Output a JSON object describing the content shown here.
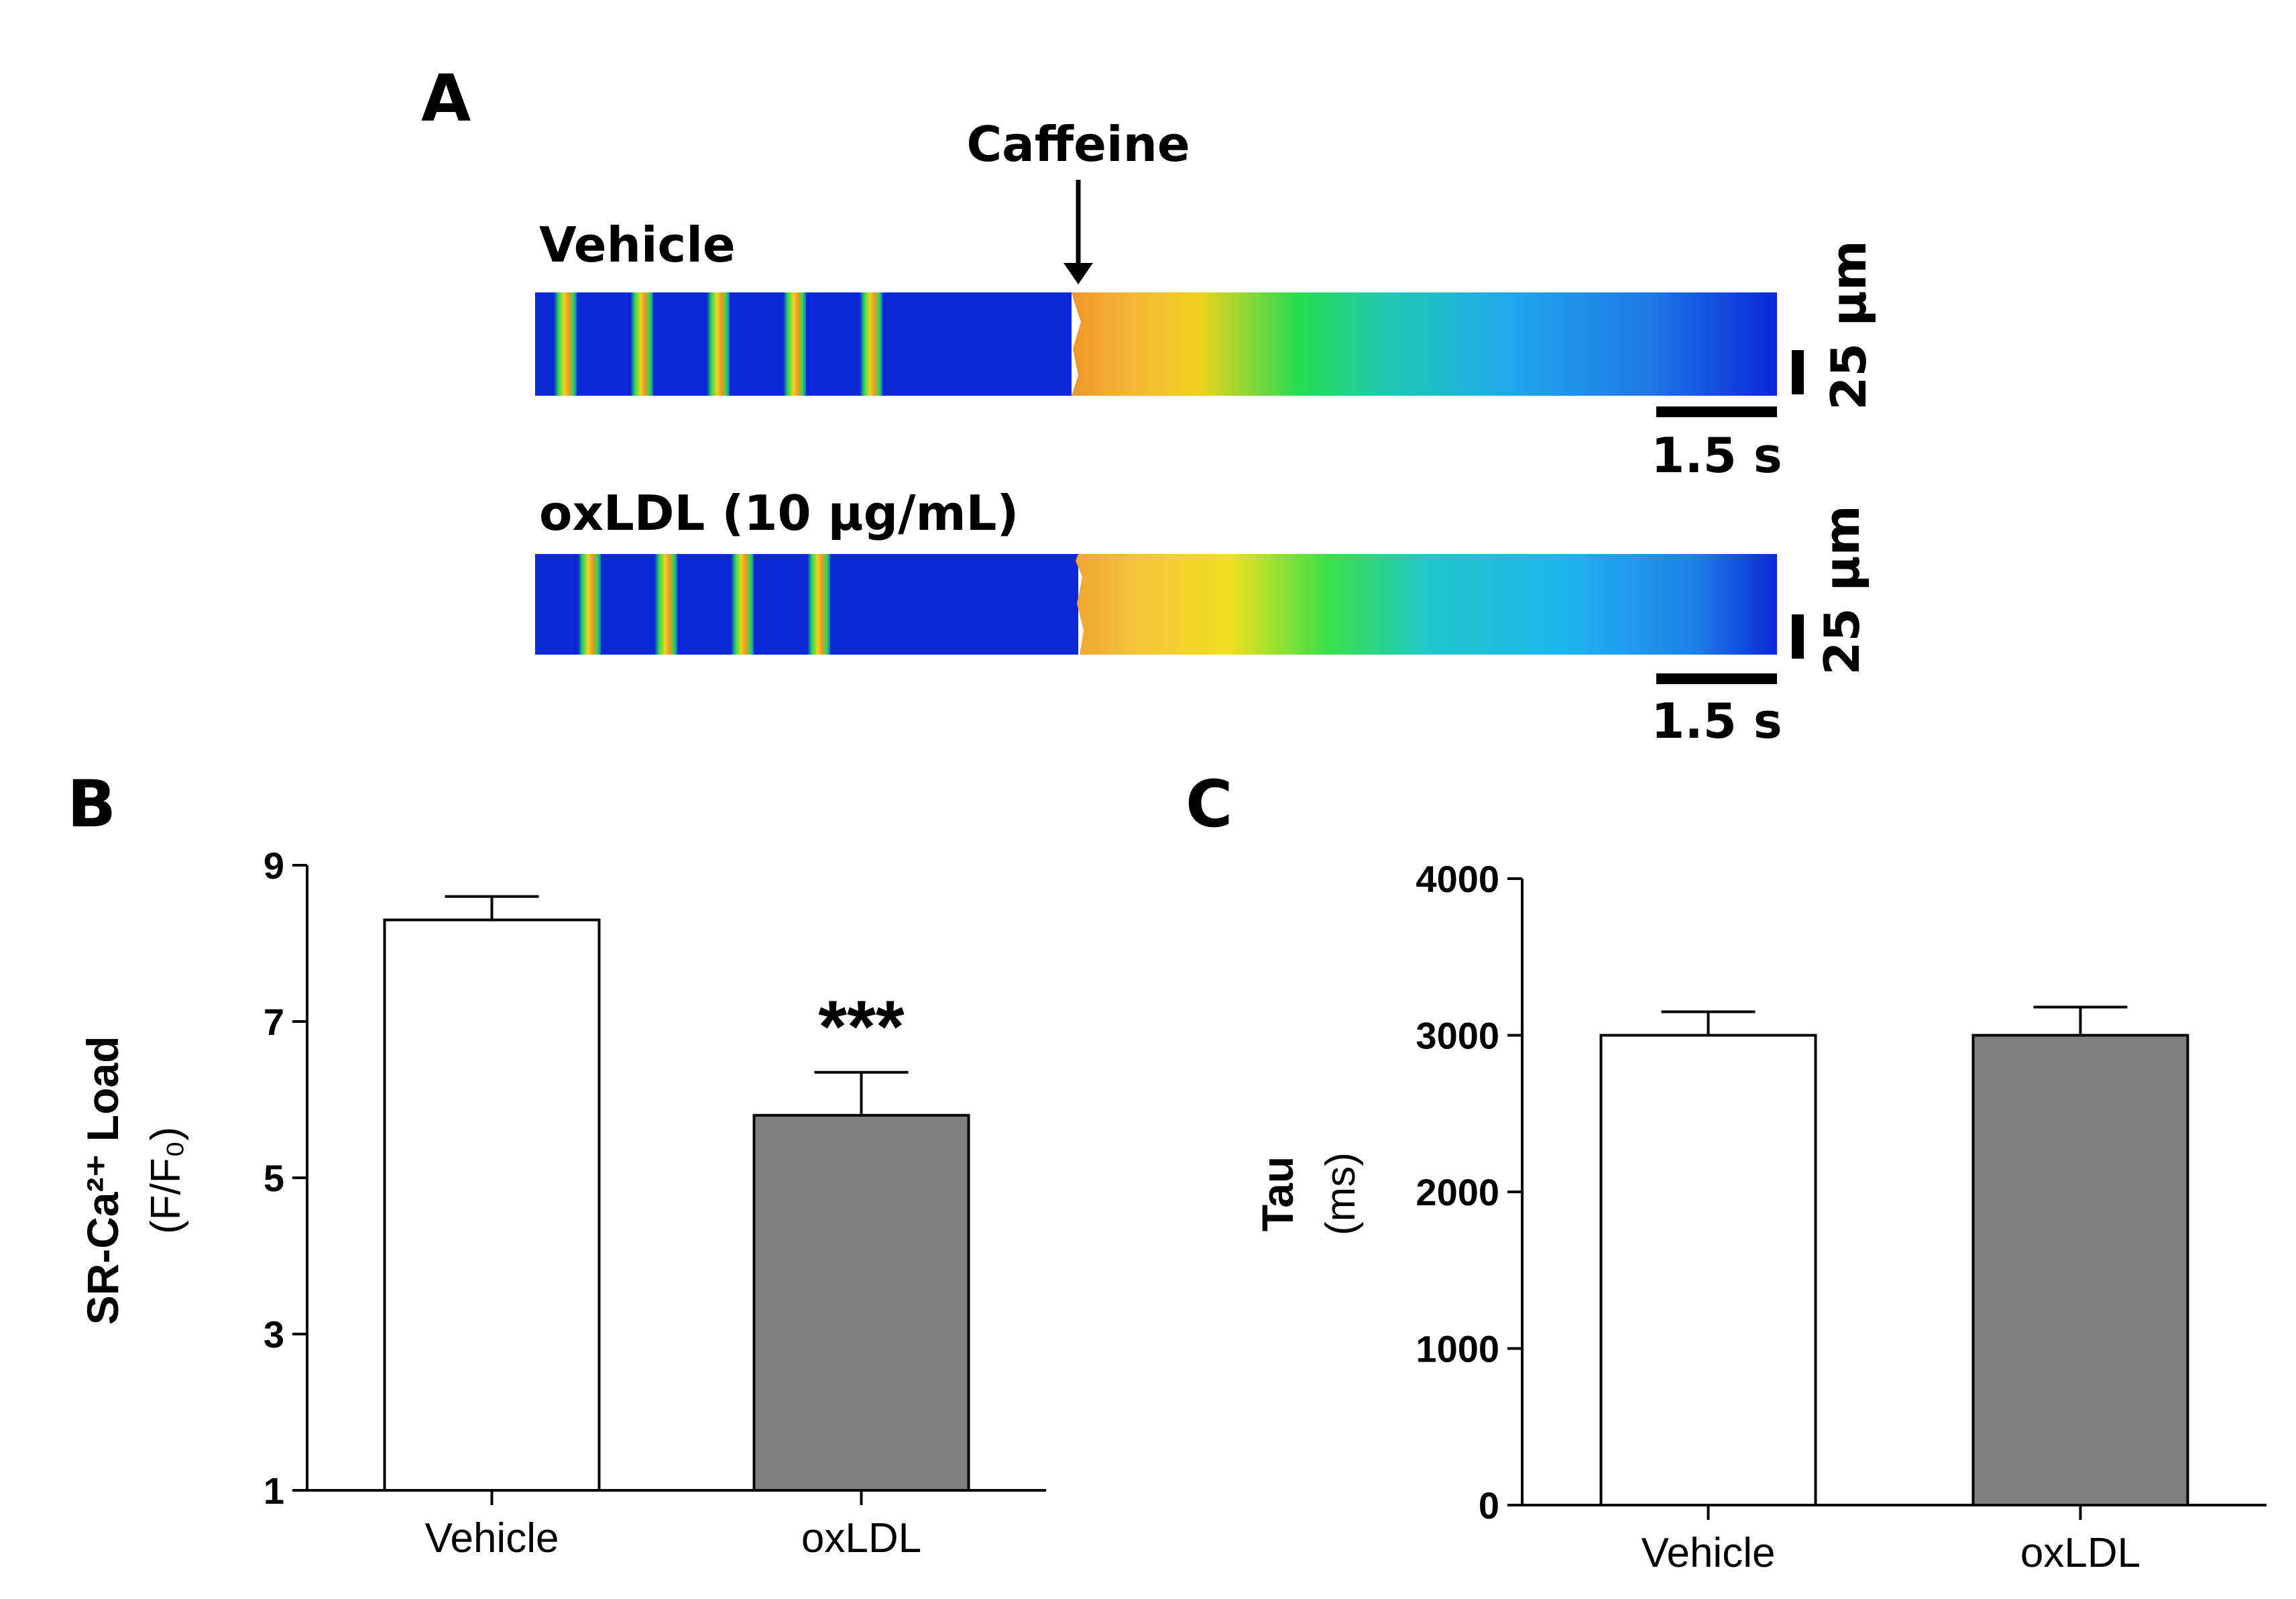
{
  "panels": {
    "a": "A",
    "b": "B",
    "c": "C"
  },
  "linescan": {
    "caffeine_label": "Caffeine",
    "rows": [
      {
        "condition": "Vehicle",
        "time_scale": "1.5 s",
        "space_scale": "25 µm",
        "n_transients_before_caffeine": 5
      },
      {
        "condition": "oxLDL (10 µg/mL)",
        "time_scale": "1.5 s",
        "space_scale": "25 µm",
        "n_transients_before_caffeine": 4
      }
    ],
    "colors": {
      "baseline": "#0a28d8",
      "transient": "#f0d21e",
      "peak": "#f09628",
      "mid": "#28dc50",
      "tail": "#20a8ec"
    }
  },
  "chart_data": [
    {
      "type": "bar",
      "title": "",
      "categories": [
        "Vehicle",
        "oxLDL"
      ],
      "values": [
        8.3,
        5.8
      ],
      "errors": [
        0.3,
        0.55
      ],
      "bar_colors": [
        "#ffffff",
        "#808080"
      ],
      "ylabel_main": "SR-Ca²⁺ Load",
      "ylabel_unit": "(F/F₀)",
      "xlabel": "",
      "ylim": [
        1,
        9
      ],
      "yticks": [
        "1",
        "3",
        "5",
        "7",
        "9"
      ],
      "yticks_values": [
        1,
        3,
        5,
        7,
        9
      ],
      "annotations": [
        {
          "category": "oxLDL",
          "text": "***"
        }
      ]
    },
    {
      "type": "bar",
      "title": "",
      "categories": [
        "Vehicle",
        "oxLDL"
      ],
      "values": [
        3000,
        3000
      ],
      "errors": [
        150,
        180
      ],
      "bar_colors": [
        "#ffffff",
        "#808080"
      ],
      "ylabel_main": "Tau",
      "ylabel_unit": "(ms)",
      "xlabel": "",
      "ylim": [
        0,
        4000
      ],
      "yticks": [
        "0",
        "1000",
        "2000",
        "3000",
        "4000"
      ],
      "yticks_values": [
        0,
        1000,
        2000,
        3000,
        4000
      ],
      "annotations": []
    }
  ]
}
